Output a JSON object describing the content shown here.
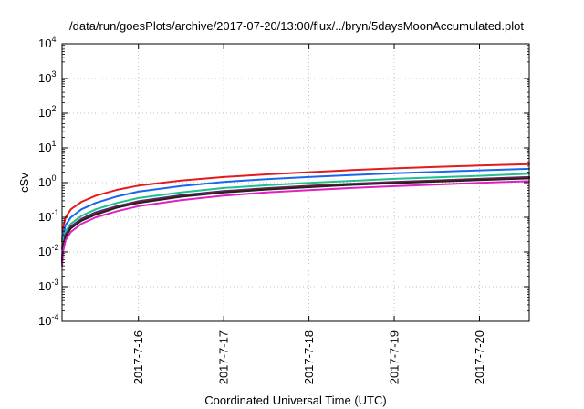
{
  "chart_data": {
    "type": "line",
    "title": "/data/run/goesPlots/archive/2017-07-20/13:00/flux/../bryn/5daysMoonAccumulated.plot",
    "xlabel": "Coordinated Universal Time (UTC)",
    "ylabel": "cSv",
    "y_scale": "log",
    "ylim": [
      0.0001,
      10000
    ],
    "y_ticks": [
      {
        "value": 0.0001,
        "base": "10",
        "exp": "-4"
      },
      {
        "value": 0.001,
        "base": "10",
        "exp": "-3"
      },
      {
        "value": 0.01,
        "base": "10",
        "exp": "-2"
      },
      {
        "value": 0.1,
        "base": "10",
        "exp": "-1"
      },
      {
        "value": 1,
        "base": "10",
        "exp": "0"
      },
      {
        "value": 10,
        "base": "10",
        "exp": "1"
      },
      {
        "value": 100,
        "base": "10",
        "exp": "2"
      },
      {
        "value": 1000,
        "base": "10",
        "exp": "3"
      },
      {
        "value": 10000,
        "base": "10",
        "exp": "4"
      }
    ],
    "xlim": [
      "2017-07-15 02:30",
      "2017-07-20 14:00"
    ],
    "x_ticks": [
      {
        "value": "2017-07-16 00:00",
        "label": "2017-7-16"
      },
      {
        "value": "2017-07-17 00:00",
        "label": "2017-7-17"
      },
      {
        "value": "2017-07-18 00:00",
        "label": "2017-7-18"
      },
      {
        "value": "2017-07-19 00:00",
        "label": "2017-7-19"
      },
      {
        "value": "2017-07-20 00:00",
        "label": "2017-7-20"
      }
    ],
    "grid": true,
    "x": [
      "2017-07-15 02:30",
      "2017-07-15 02:45",
      "2017-07-15 03:30",
      "2017-07-15 05:00",
      "2017-07-15 08:00",
      "2017-07-15 12:00",
      "2017-07-15 18:00",
      "2017-07-16 00:00",
      "2017-07-16 12:00",
      "2017-07-17 00:00",
      "2017-07-17 12:00",
      "2017-07-18 00:00",
      "2017-07-18 12:00",
      "2017-07-19 00:00",
      "2017-07-19 12:00",
      "2017-07-20 00:00",
      "2017-07-20 14:00"
    ],
    "series": [
      {
        "color": "#e41a1c",
        "values": [
          0.02,
          0.05,
          0.1,
          0.17,
          0.28,
          0.42,
          0.62,
          0.82,
          1.15,
          1.45,
          1.72,
          2.0,
          2.3,
          2.58,
          2.85,
          3.1,
          3.4
        ]
      },
      {
        "color": "#1a66ee",
        "values": [
          0.012,
          0.03,
          0.06,
          0.1,
          0.17,
          0.26,
          0.4,
          0.55,
          0.8,
          1.05,
          1.25,
          1.45,
          1.65,
          1.85,
          2.05,
          2.25,
          2.5
        ]
      },
      {
        "color": "#1fc08a",
        "values": [
          0.008,
          0.02,
          0.04,
          0.065,
          0.11,
          0.17,
          0.26,
          0.36,
          0.52,
          0.7,
          0.84,
          0.98,
          1.12,
          1.28,
          1.42,
          1.57,
          1.8
        ]
      },
      {
        "color": "#2e2e9e",
        "values": [
          0.006,
          0.015,
          0.032,
          0.055,
          0.09,
          0.14,
          0.21,
          0.29,
          0.43,
          0.57,
          0.69,
          0.81,
          0.93,
          1.05,
          1.16,
          1.28,
          1.45
        ]
      },
      {
        "color": "#8b1a2c",
        "values": [
          0.0055,
          0.014,
          0.03,
          0.052,
          0.085,
          0.13,
          0.2,
          0.28,
          0.41,
          0.55,
          0.67,
          0.79,
          0.91,
          1.02,
          1.13,
          1.25,
          1.4
        ]
      },
      {
        "color": "#222222",
        "values": [
          0.005,
          0.013,
          0.028,
          0.048,
          0.08,
          0.12,
          0.19,
          0.26,
          0.39,
          0.52,
          0.63,
          0.74,
          0.86,
          0.97,
          1.07,
          1.18,
          1.32
        ]
      },
      {
        "color": "#e020c0",
        "values": [
          0.004,
          0.01,
          0.022,
          0.038,
          0.065,
          0.1,
          0.15,
          0.21,
          0.31,
          0.42,
          0.52,
          0.61,
          0.7,
          0.79,
          0.88,
          0.98,
          1.1
        ]
      }
    ]
  }
}
